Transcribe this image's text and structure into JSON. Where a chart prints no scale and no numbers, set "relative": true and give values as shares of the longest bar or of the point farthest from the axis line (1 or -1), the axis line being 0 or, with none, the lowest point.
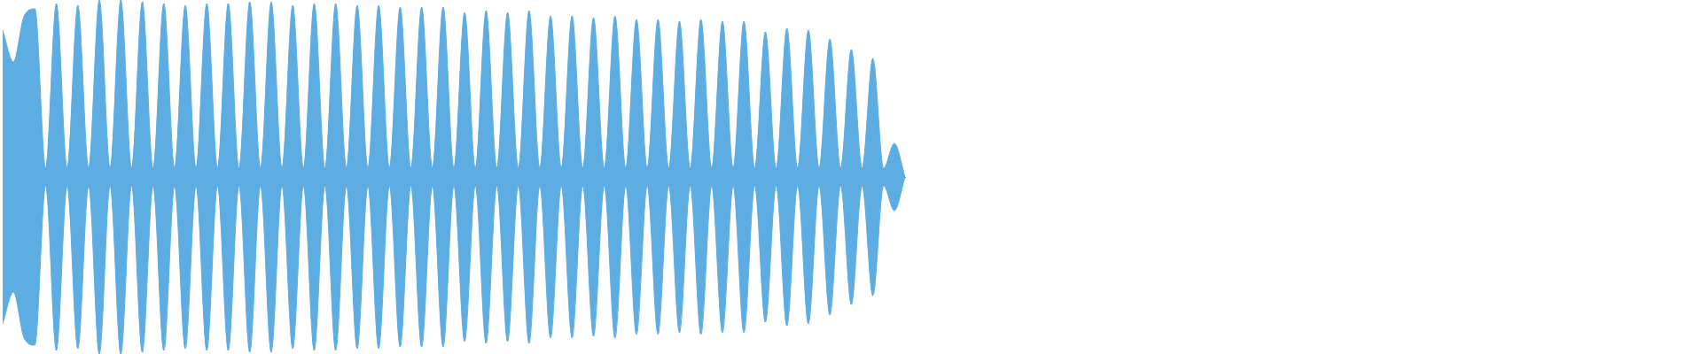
{
  "chart_data": {
    "type": "area",
    "relative": true,
    "categories": [
      null,
      null,
      null,
      null,
      null,
      null,
      null,
      null,
      null,
      null,
      null,
      null,
      null,
      null,
      null,
      null,
      null,
      null,
      null,
      null,
      null,
      null,
      null,
      null,
      null,
      null,
      null,
      null,
      null,
      null,
      null,
      null,
      null,
      null,
      null,
      null,
      null,
      null,
      null,
      null,
      null,
      null,
      null,
      null,
      null,
      null,
      null,
      null,
      null,
      null,
      null,
      null,
      null,
      null,
      null,
      null,
      null,
      null,
      null,
      null,
      null,
      null,
      null,
      null,
      null,
      null,
      null,
      null,
      null,
      null,
      null,
      null,
      null,
      null,
      null,
      null,
      null,
      null,
      null,
      null,
      null,
      null,
      null,
      null,
      null
    ],
    "series": [
      {
        "color": "#5dade2",
        "values": [
          0.83,
          0.65,
          0.91,
          0.95,
          0.05,
          0.98,
          0.05,
          0.97,
          0.05,
          1,
          0.05,
          1,
          0.05,
          0.99,
          0.05,
          0.98,
          0.05,
          0.97,
          0.05,
          0.98,
          0.05,
          0.98,
          0.05,
          0.99,
          0.05,
          0.99,
          0.05,
          0.97,
          0.05,
          0.98,
          0.05,
          0.98,
          0.05,
          0.97,
          0.05,
          0.97,
          0.05,
          0.96,
          0.05,
          0.96,
          0.05,
          0.96,
          0.05,
          0.93,
          0.05,
          0.94,
          0.05,
          0.93,
          0.05,
          0.94,
          0.05,
          0.91,
          0.05,
          0.91,
          0.05,
          0.9,
          0.05,
          0.91,
          0.05,
          0.89,
          0.05,
          0.89,
          0.05,
          0.88,
          0.05,
          0.89,
          0.05,
          0.88,
          0.05,
          0.88,
          0.05,
          0.82,
          0.05,
          0.84,
          0.05,
          0.83,
          0.05,
          0.78,
          0.05,
          0.72,
          0.05,
          0.67,
          0.05,
          0.19,
          0
        ]
      },
      {
        "color": "#5dade2",
        "values": [
          -0.83,
          -0.65,
          -0.91,
          -0.95,
          -0.05,
          -0.98,
          -0.05,
          -0.97,
          -0.05,
          -1,
          -0.05,
          -1,
          -0.05,
          -0.99,
          -0.05,
          -0.98,
          -0.05,
          -0.97,
          -0.05,
          -0.98,
          -0.05,
          -0.98,
          -0.05,
          -0.99,
          -0.05,
          -0.99,
          -0.05,
          -0.97,
          -0.05,
          -0.98,
          -0.05,
          -0.98,
          -0.05,
          -0.97,
          -0.05,
          -0.97,
          -0.05,
          -0.96,
          -0.05,
          -0.96,
          -0.05,
          -0.96,
          -0.05,
          -0.93,
          -0.05,
          -0.94,
          -0.05,
          -0.93,
          -0.05,
          -0.94,
          -0.05,
          -0.91,
          -0.05,
          -0.91,
          -0.05,
          -0.9,
          -0.05,
          -0.91,
          -0.05,
          -0.89,
          -0.05,
          -0.89,
          -0.05,
          -0.88,
          -0.05,
          -0.89,
          -0.05,
          -0.88,
          -0.05,
          -0.88,
          -0.05,
          -0.82,
          -0.05,
          -0.84,
          -0.05,
          -0.83,
          -0.05,
          -0.78,
          -0.05,
          -0.72,
          -0.05,
          -0.67,
          -0.05,
          -0.19,
          0
        ]
      }
    ]
  }
}
